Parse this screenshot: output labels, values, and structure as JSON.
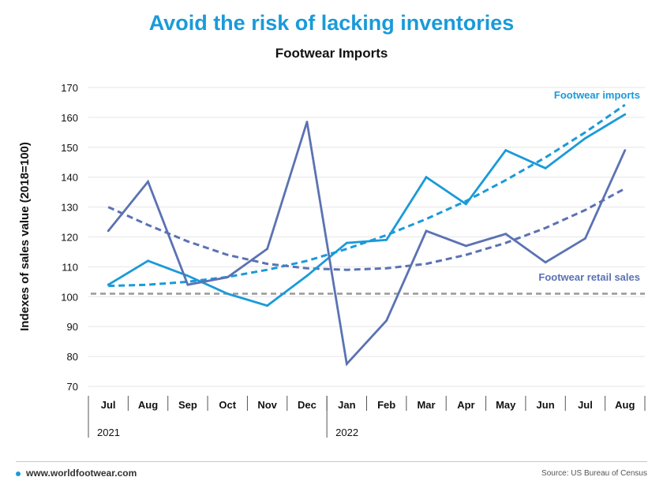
{
  "header": {
    "headline": "Avoid the risk of lacking inventories"
  },
  "footer": {
    "site": "www.worldfootwear.com",
    "source": "Source: US Bureau of Census"
  },
  "chart_data": {
    "type": "line",
    "title": "Footwear Imports",
    "ylabel": "Indexes of sales value (2018=100)",
    "xlabel": "",
    "ylim": [
      70,
      170
    ],
    "yticks": [
      70,
      80,
      90,
      100,
      110,
      120,
      130,
      140,
      150,
      160,
      170
    ],
    "categories": [
      "Jul",
      "Aug",
      "Sep",
      "Oct",
      "Nov",
      "Dec",
      "Jan",
      "Feb",
      "Mar",
      "Apr",
      "May",
      "Jun",
      "Jul",
      "Aug"
    ],
    "year_groups": [
      {
        "label": "2021",
        "start_index": 0
      },
      {
        "label": "2022",
        "start_index": 6
      }
    ],
    "grid": "horizontal",
    "reference_line": {
      "y": 101,
      "style": "dashed",
      "color": "#999999"
    },
    "series": [
      {
        "name": "Footwear imports",
        "color": "#1a9ad9",
        "values": [
          104,
          112,
          107,
          101,
          97,
          107,
          118,
          119,
          140,
          131,
          149,
          143,
          153,
          161
        ],
        "trend": [
          103.6,
          104,
          105,
          106.6,
          109,
          112,
          116,
          120.6,
          126,
          132,
          139,
          146.6,
          155,
          164.2
        ]
      },
      {
        "name": "Footwear retail sales",
        "color": "#5b72b3",
        "values": [
          122,
          138.5,
          104,
          106.5,
          116,
          158.5,
          77.5,
          92,
          122,
          117,
          121,
          111.5,
          119.5,
          149
        ],
        "trend": [
          130,
          124,
          118.5,
          114,
          111,
          109.5,
          109,
          109.5,
          111,
          114,
          118,
          123,
          129,
          136.2
        ]
      }
    ]
  }
}
